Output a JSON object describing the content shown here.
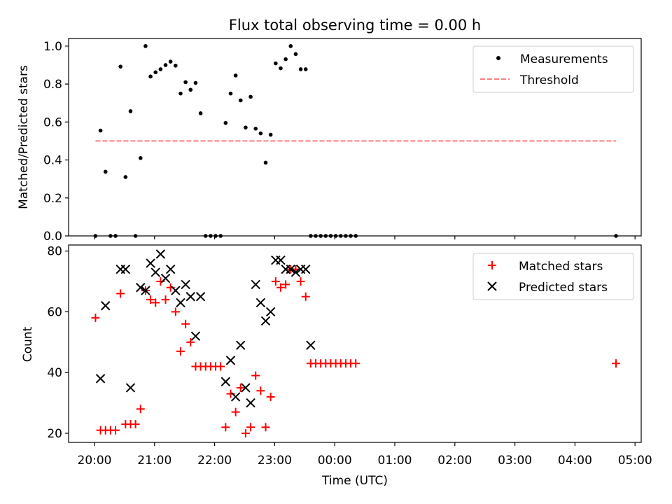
{
  "chart_data": [
    {
      "type": "scatter",
      "title": "Flux total observing time = 0.00 h",
      "xlabel": "",
      "ylabel": "Matched/Predicted stars",
      "ylim": [
        0,
        1.04
      ],
      "y_ticks": [
        "0.0",
        "0.2",
        "0.4",
        "0.6",
        "0.8",
        "1.0"
      ],
      "legend_position": "top-right",
      "series": [
        {
          "name": "Measurements",
          "marker": "dot",
          "color": "#000000",
          "points": [
            [
              "20:01",
              0.0
            ],
            [
              "20:06",
              0.555
            ],
            [
              "20:11",
              0.338
            ],
            [
              "20:16",
              0.0
            ],
            [
              "20:21",
              0.0
            ],
            [
              "20:26",
              0.892
            ],
            [
              "20:31",
              0.31
            ],
            [
              "20:36",
              0.657
            ],
            [
              "20:41",
              0.0
            ],
            [
              "20:46",
              0.41
            ],
            [
              "20:51",
              1.0
            ],
            [
              "20:56",
              0.84
            ],
            [
              "21:01",
              0.862
            ],
            [
              "21:06",
              0.878
            ],
            [
              "21:11",
              0.9
            ],
            [
              "21:16",
              0.918
            ],
            [
              "21:21",
              0.897
            ],
            [
              "21:26",
              0.75
            ],
            [
              "21:31",
              0.81
            ],
            [
              "21:36",
              0.77
            ],
            [
              "21:41",
              0.806
            ],
            [
              "21:46",
              0.646
            ],
            [
              "21:51",
              0.0
            ],
            [
              "21:56",
              0.0
            ],
            [
              "22:01",
              0.0
            ],
            [
              "22:06",
              0.0
            ],
            [
              "22:11",
              0.595
            ],
            [
              "22:16",
              0.75
            ],
            [
              "22:21",
              0.845
            ],
            [
              "22:26",
              0.714
            ],
            [
              "22:31",
              0.571
            ],
            [
              "22:36",
              0.733
            ],
            [
              "22:41",
              0.565
            ],
            [
              "22:46",
              0.54
            ],
            [
              "22:51",
              0.386
            ],
            [
              "22:56",
              0.533
            ],
            [
              "23:01",
              0.909
            ],
            [
              "23:06",
              0.883
            ],
            [
              "23:11",
              0.931
            ],
            [
              "23:16",
              1.0
            ],
            [
              "23:21",
              0.958
            ],
            [
              "23:26",
              0.878
            ],
            [
              "23:31",
              0.878
            ],
            [
              "23:36",
              0.0
            ],
            [
              "23:41",
              0.0
            ],
            [
              "23:46",
              0.0
            ],
            [
              "23:51",
              0.0
            ],
            [
              "23:56",
              0.0
            ],
            [
              "00:01",
              0.0
            ],
            [
              "00:06",
              0.0
            ],
            [
              "00:11",
              0.0
            ],
            [
              "00:16",
              0.0
            ],
            [
              "00:21",
              0.0
            ],
            [
              "04:41",
              0.0
            ]
          ]
        },
        {
          "name": "Threshold",
          "marker": "dashed-line",
          "color": "#ff7f7f",
          "points": [
            [
              "20:01",
              0.5
            ],
            [
              "04:41",
              0.5
            ]
          ]
        }
      ]
    },
    {
      "type": "scatter",
      "xlabel": "Time (UTC)",
      "ylabel": "Count",
      "ylim": [
        17,
        82
      ],
      "y_ticks": [
        "20",
        "40",
        "60",
        "80"
      ],
      "x_ticks": [
        "20:00",
        "21:00",
        "22:00",
        "23:00",
        "00:00",
        "01:00",
        "02:00",
        "03:00",
        "04:00",
        "05:00"
      ],
      "legend_position": "top-right",
      "series": [
        {
          "name": "Matched stars",
          "marker": "plus",
          "color": "#ff0000",
          "points": [
            [
              "20:01",
              58
            ],
            [
              "20:06",
              21
            ],
            [
              "20:11",
              21
            ],
            [
              "20:16",
              21
            ],
            [
              "20:21",
              21
            ],
            [
              "20:26",
              66
            ],
            [
              "20:31",
              23
            ],
            [
              "20:36",
              23
            ],
            [
              "20:41",
              23
            ],
            [
              "20:46",
              28
            ],
            [
              "20:51",
              67
            ],
            [
              "20:56",
              64
            ],
            [
              "21:01",
              63
            ],
            [
              "21:06",
              70
            ],
            [
              "21:11",
              64
            ],
            [
              "21:16",
              68
            ],
            [
              "21:21",
              60
            ],
            [
              "21:26",
              47
            ],
            [
              "21:31",
              56
            ],
            [
              "21:36",
              50
            ],
            [
              "21:41",
              42
            ],
            [
              "21:46",
              42
            ],
            [
              "21:51",
              42
            ],
            [
              "21:56",
              42
            ],
            [
              "22:01",
              42
            ],
            [
              "22:06",
              42
            ],
            [
              "22:11",
              22
            ],
            [
              "22:16",
              33
            ],
            [
              "22:21",
              27
            ],
            [
              "22:26",
              35
            ],
            [
              "22:31",
              20
            ],
            [
              "22:36",
              22
            ],
            [
              "22:41",
              39
            ],
            [
              "22:46",
              34
            ],
            [
              "22:51",
              22
            ],
            [
              "22:56",
              32
            ],
            [
              "23:01",
              70
            ],
            [
              "23:06",
              68
            ],
            [
              "23:11",
              69
            ],
            [
              "23:16",
              74
            ],
            [
              "23:21",
              74
            ],
            [
              "23:26",
              70
            ],
            [
              "23:31",
              65
            ],
            [
              "23:36",
              43
            ],
            [
              "23:41",
              43
            ],
            [
              "23:46",
              43
            ],
            [
              "23:51",
              43
            ],
            [
              "23:56",
              43
            ],
            [
              "00:01",
              43
            ],
            [
              "00:06",
              43
            ],
            [
              "00:11",
              43
            ],
            [
              "00:16",
              43
            ],
            [
              "00:21",
              43
            ],
            [
              "04:41",
              43
            ]
          ]
        },
        {
          "name": "Predicted stars",
          "marker": "x",
          "color": "#000000",
          "points": [
            [
              "20:06",
              38
            ],
            [
              "20:11",
              62
            ],
            [
              "20:26",
              74
            ],
            [
              "20:31",
              74
            ],
            [
              "20:36",
              35
            ],
            [
              "20:46",
              68
            ],
            [
              "20:51",
              67
            ],
            [
              "20:56",
              76
            ],
            [
              "21:01",
              73
            ],
            [
              "21:06",
              79
            ],
            [
              "21:11",
              71
            ],
            [
              "21:16",
              74
            ],
            [
              "21:21",
              67
            ],
            [
              "21:26",
              63
            ],
            [
              "21:31",
              69
            ],
            [
              "21:36",
              65
            ],
            [
              "21:41",
              52
            ],
            [
              "21:46",
              65
            ],
            [
              "22:11",
              37
            ],
            [
              "22:16",
              44
            ],
            [
              "22:21",
              32
            ],
            [
              "22:26",
              49
            ],
            [
              "22:31",
              35
            ],
            [
              "22:36",
              30
            ],
            [
              "22:41",
              69
            ],
            [
              "22:46",
              63
            ],
            [
              "22:51",
              57
            ],
            [
              "22:56",
              60
            ],
            [
              "23:01",
              77
            ],
            [
              "23:06",
              77
            ],
            [
              "23:11",
              74
            ],
            [
              "23:16",
              74
            ],
            [
              "23:21",
              73
            ],
            [
              "23:26",
              74
            ],
            [
              "23:31",
              74
            ],
            [
              "23:36",
              49
            ]
          ]
        }
      ]
    }
  ]
}
